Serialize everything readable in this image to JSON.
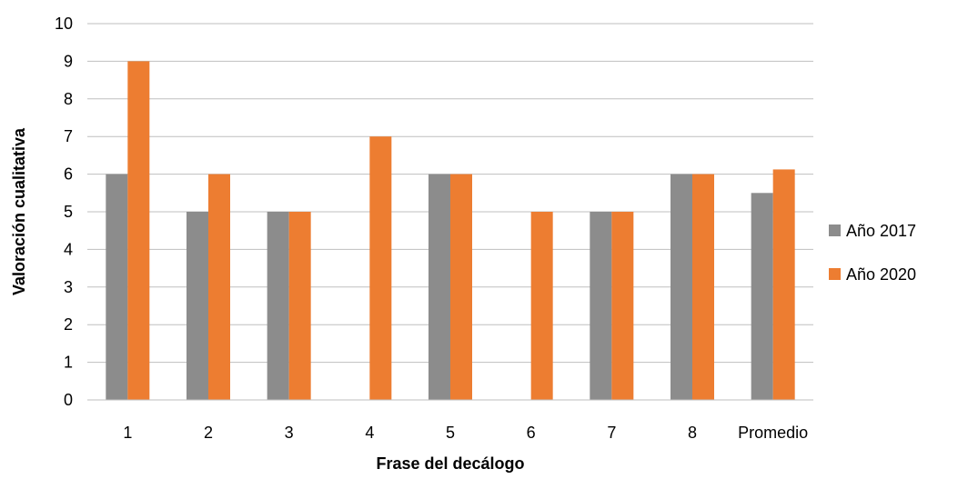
{
  "chart_data": {
    "type": "bar",
    "categories": [
      "1",
      "2",
      "3",
      "4",
      "5",
      "6",
      "7",
      "8",
      "Promedio"
    ],
    "series": [
      {
        "name": "Año 2017",
        "color": "#8c8c8c",
        "values": [
          6,
          5,
          5,
          0,
          6,
          0,
          5,
          6,
          5.5
        ]
      },
      {
        "name": "Año 2020",
        "color": "#ed7d31",
        "values": [
          9,
          6,
          5,
          7,
          6,
          5,
          5,
          6,
          6.125
        ]
      }
    ],
    "xlabel": "Frase del decálogo",
    "ylabel": "Valoración cualitativa",
    "ylim": [
      0,
      10
    ],
    "yticks": [
      "0",
      "1",
      "2",
      "3",
      "4",
      "5",
      "6",
      "7",
      "8",
      "9",
      "10"
    ],
    "grid": true,
    "legend_position": "right"
  }
}
